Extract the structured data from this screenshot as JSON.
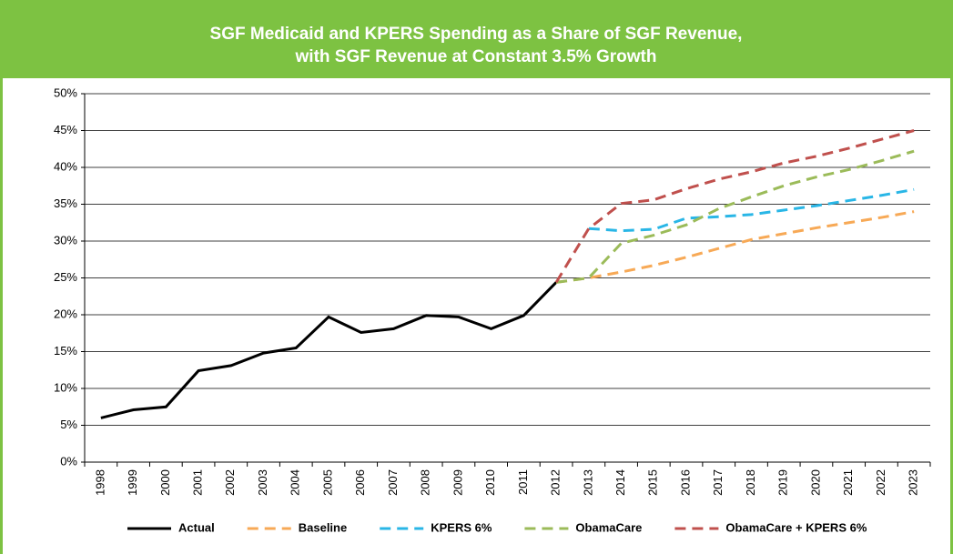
{
  "chart_data": {
    "type": "line",
    "title": [
      "SGF Medicaid and KPERS Spending as a Share of SGF Revenue,",
      "with SGF Revenue at Constant 3.5% Growth"
    ],
    "categories": [
      "1998",
      "1999",
      "2000",
      "2001",
      "2002",
      "2003",
      "2004",
      "2005",
      "2006",
      "2007",
      "2008",
      "2009",
      "2010",
      "2011",
      "2012",
      "2013",
      "2014",
      "2015",
      "2016",
      "2017",
      "2018",
      "2019",
      "2020",
      "2021",
      "2022",
      "2023"
    ],
    "ylim": [
      0,
      50
    ],
    "yticks": [
      {
        "value": 0,
        "label": "0%"
      },
      {
        "value": 5,
        "label": "5%"
      },
      {
        "value": 10,
        "label": "10%"
      },
      {
        "value": 15,
        "label": "15%"
      },
      {
        "value": 20,
        "label": "20%"
      },
      {
        "value": 25,
        "label": "25%"
      },
      {
        "value": 30,
        "label": "30%"
      },
      {
        "value": 35,
        "label": "35%"
      },
      {
        "value": 40,
        "label": "40%"
      },
      {
        "value": 45,
        "label": "45%"
      },
      {
        "value": 50,
        "label": "50%"
      }
    ],
    "grid": true,
    "legend": "bottom",
    "series": [
      {
        "name": "Actual",
        "color": "#000000",
        "dashed": false,
        "values": [
          6,
          7.1,
          7.5,
          12.4,
          13.1,
          14.8,
          15.5,
          19.7,
          17.6,
          18.1,
          19.9,
          19.7,
          18.1,
          19.9,
          24.4,
          null,
          null,
          null,
          null,
          null,
          null,
          null,
          null,
          null,
          null,
          null
        ]
      },
      {
        "name": "Baseline",
        "color": "#f7a956",
        "dashed": true,
        "values": [
          null,
          null,
          null,
          null,
          null,
          null,
          null,
          null,
          null,
          null,
          null,
          null,
          null,
          null,
          24.4,
          25,
          25.8,
          26.7,
          27.8,
          29,
          30.2,
          31,
          31.8,
          32.5,
          33.2,
          34
        ]
      },
      {
        "name": "KPERS 6%",
        "color": "#29b6e6",
        "dashed": true,
        "values": [
          null,
          null,
          null,
          null,
          null,
          null,
          null,
          null,
          null,
          null,
          null,
          null,
          null,
          null,
          null,
          31.7,
          31.4,
          31.6,
          33.1,
          33.3,
          33.6,
          34.2,
          34.8,
          35.5,
          36.2,
          37
        ]
      },
      {
        "name": "ObamaCare",
        "color": "#9bbb59",
        "dashed": true,
        "values": [
          null,
          null,
          null,
          null,
          null,
          null,
          null,
          null,
          null,
          null,
          null,
          null,
          null,
          null,
          24.4,
          25,
          29.7,
          30.8,
          32.2,
          34.4,
          36,
          37.5,
          38.7,
          39.7,
          40.9,
          42.2
        ]
      },
      {
        "name": "ObamaCare + KPERS 6%",
        "color": "#c0504d",
        "dashed": true,
        "values": [
          null,
          null,
          null,
          null,
          null,
          null,
          null,
          null,
          null,
          null,
          null,
          null,
          null,
          null,
          24.4,
          31.7,
          35.1,
          35.6,
          37.1,
          38.4,
          39.4,
          40.6,
          41.5,
          42.6,
          43.8,
          45
        ]
      }
    ]
  }
}
